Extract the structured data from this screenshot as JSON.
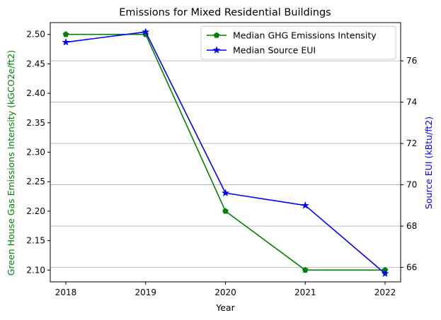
{
  "chart_data": {
    "type": "line",
    "title": "Emissions for Mixed Residential Buildings",
    "xlabel": "Year",
    "ylabel_left": "Green House Gas Emissions Intensity (kGCO2e/ft2)",
    "ylabel_right": "Source EUI (kBtu/ft2)",
    "categories": [
      "2018",
      "2019",
      "2020",
      "2021",
      "2022"
    ],
    "ylim_left": [
      2.08,
      2.52
    ],
    "ylim_right": [
      65.3,
      77.85
    ],
    "yticks_left": [
      2.1,
      2.15,
      2.2,
      2.25,
      2.3,
      2.35,
      2.4,
      2.45,
      2.5
    ],
    "yticks_right": [
      66,
      68,
      70,
      72,
      74,
      76
    ],
    "grid": "horizontal lines at right-axis ticks",
    "legend_position": "top-right",
    "series": [
      {
        "name": "Median GHG Emissions Intensity",
        "axis": "left",
        "color": "#008000",
        "marker": "pentagon",
        "values": [
          2.5,
          2.5,
          2.2,
          2.1,
          2.1
        ]
      },
      {
        "name": "Median Source EUI",
        "axis": "right",
        "color": "#0000ff",
        "marker": "star",
        "values": [
          76.9,
          77.4,
          69.6,
          69.0,
          65.7
        ]
      }
    ]
  }
}
